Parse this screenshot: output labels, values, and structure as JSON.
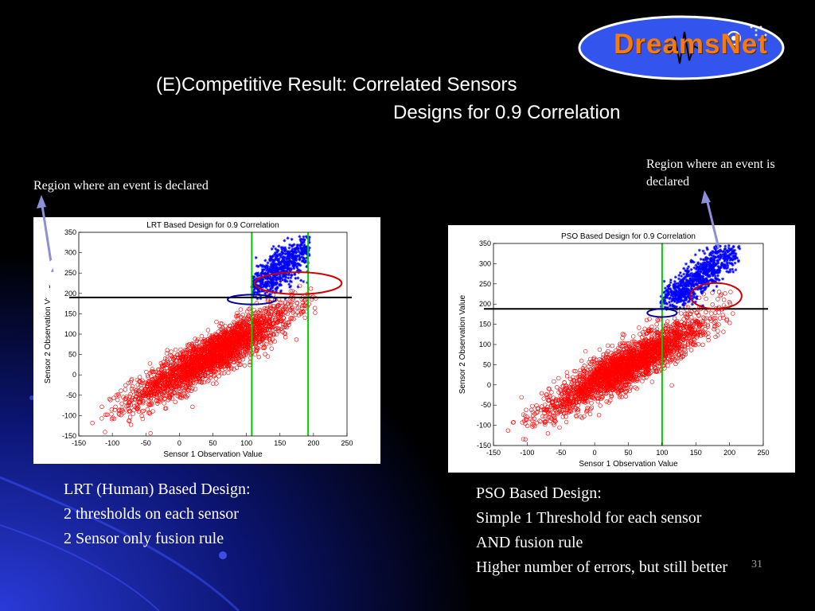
{
  "slide": {
    "title_line1": "(E)Competitive Result: Correlated Sensors",
    "title_line2": "Designs for 0.9 Correlation",
    "logo_text": "DreamsNet",
    "page_number": "31"
  },
  "notes": {
    "left": "Region where an event is declared",
    "right": "Region where an event is declared"
  },
  "captions": {
    "left": [
      "LRT (Human) Based Design:",
      "2 thresholds on each sensor",
      "2 Sensor only fusion rule"
    ],
    "right": [
      "PSO Based Design:",
      "Simple 1 Threshold for each sensor",
      "AND fusion rule",
      "Higher number of errors, but still better"
    ]
  },
  "colors": {
    "h0_points": "#ff0000",
    "h1_points": "#0000ff",
    "threshold_x": "#00cc00",
    "threshold_y": "#000000",
    "highlight_red": "#cc0000",
    "highlight_blue": "#000099",
    "arrow": "#8f8fd8",
    "logo_fill": "#3355ee"
  },
  "chart_data": [
    {
      "type": "scatter",
      "title": "LRT Based Design for 0.9 Correlation",
      "xlabel": "Sensor 1 Observation Value",
      "ylabel": "Sensor 2 Observation Value",
      "xlim": [
        -150,
        250
      ],
      "ylim": [
        -150,
        350
      ],
      "xticks": [
        -150,
        -100,
        -50,
        0,
        50,
        100,
        150,
        200,
        250
      ],
      "yticks": [
        -150,
        -100,
        -50,
        0,
        50,
        100,
        150,
        200,
        250,
        300,
        350
      ],
      "grid": false,
      "series": [
        {
          "marker": "o",
          "color": "#ff0000",
          "approx_count": 8000,
          "correlation": 0.9,
          "mean": [
            50,
            50
          ],
          "spread_x": 60,
          "spread_y": 60,
          "range_x": [
            -130,
            205
          ],
          "range_y": [
            -145,
            250
          ]
        },
        {
          "marker": "*",
          "color": "#0000ff",
          "approx_count": 2000,
          "correlation": 0.9,
          "mean": [
            150,
            260
          ],
          "spread_x": 40,
          "spread_y": 55,
          "range_x": [
            108,
            195
          ],
          "range_y": [
            185,
            340
          ]
        }
      ],
      "thresholds_x": [
        108,
        192
      ],
      "thresholds_y": [
        190
      ],
      "highlight_ellipses": [
        {
          "cx": 177,
          "cy": 225,
          "rx": 65,
          "ry": 27,
          "color": "#cc0000"
        },
        {
          "cx": 108,
          "cy": 185,
          "rx": 36,
          "ry": 12,
          "color": "#000099"
        }
      ]
    },
    {
      "type": "scatter",
      "title": "PSO Based Design for 0.9 Correlation",
      "xlabel": "Sensor 1 Observation Value",
      "ylabel": "Sensor 2 Observation Value",
      "xlim": [
        -150,
        250
      ],
      "ylim": [
        -150,
        350
      ],
      "xticks": [
        -150,
        -100,
        -50,
        0,
        50,
        100,
        150,
        200,
        250
      ],
      "yticks": [
        -150,
        -100,
        -50,
        0,
        50,
        100,
        150,
        200,
        250,
        300,
        350
      ],
      "grid": false,
      "series": [
        {
          "marker": "o",
          "color": "#ff0000",
          "approx_count": 8000,
          "correlation": 0.9,
          "mean": [
            50,
            50
          ],
          "spread_x": 60,
          "spread_y": 60,
          "range_x": [
            -130,
            205
          ],
          "range_y": [
            -145,
            250
          ]
        },
        {
          "marker": "*",
          "color": "#0000ff",
          "approx_count": 2000,
          "correlation": 0.9,
          "mean": [
            150,
            260
          ],
          "spread_x": 40,
          "spread_y": 55,
          "range_x": [
            98,
            215
          ],
          "range_y": [
            185,
            345
          ]
        }
      ],
      "thresholds_x": [
        100
      ],
      "thresholds_y": [
        188
      ],
      "highlight_ellipses": [
        {
          "cx": 180,
          "cy": 220,
          "rx": 38,
          "ry": 32,
          "color": "#cc0000"
        },
        {
          "cx": 100,
          "cy": 178,
          "rx": 22,
          "ry": 10,
          "color": "#000099"
        }
      ]
    }
  ]
}
